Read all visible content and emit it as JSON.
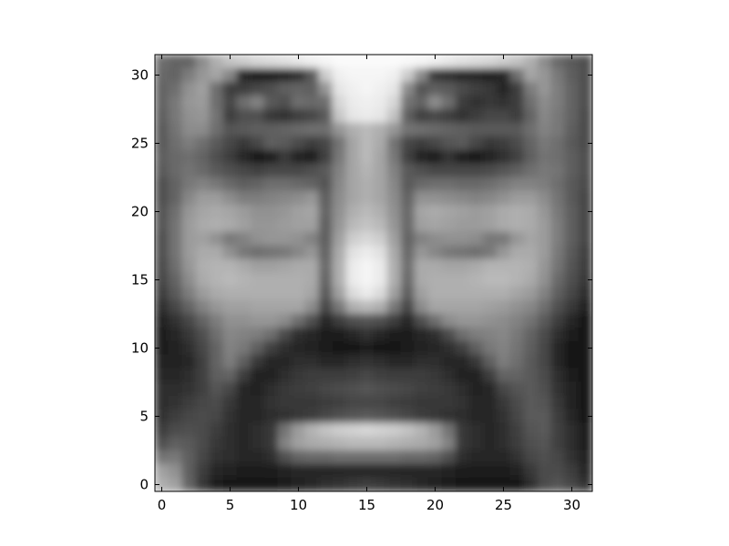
{
  "chart_data": {
    "type": "heatmap",
    "colormap": "gray",
    "interpolation": "smooth",
    "image_size": [
      32,
      32
    ],
    "origin": "upper",
    "xlim": [
      -0.5,
      31.5
    ],
    "ylim": [
      31.5,
      -0.5
    ],
    "x_ticks": [
      0,
      5,
      10,
      15,
      20,
      25,
      30
    ],
    "y_ticks": [
      0,
      5,
      10,
      15,
      20,
      25,
      30
    ],
    "x_tick_labels": [
      "0",
      "5",
      "10",
      "15",
      "20",
      "25",
      "30"
    ],
    "y_tick_labels": [
      "0",
      "5",
      "10",
      "15",
      "20",
      "25",
      "30"
    ],
    "grid": false,
    "title": "",
    "xlabel": "",
    "ylabel": "",
    "pixel_rows": [
      [
        110,
        100,
        100,
        140,
        175,
        195,
        205,
        215,
        220,
        225,
        232,
        240,
        245,
        250,
        250,
        250,
        250,
        250,
        248,
        245,
        240,
        232,
        225,
        220,
        215,
        205,
        195,
        175,
        140,
        105,
        90,
        80
      ],
      [
        105,
        100,
        125,
        150,
        165,
        135,
        40,
        30,
        30,
        35,
        45,
        90,
        205,
        240,
        245,
        245,
        245,
        240,
        205,
        140,
        55,
        45,
        40,
        40,
        35,
        40,
        110,
        165,
        150,
        120,
        95,
        80
      ],
      [
        100,
        110,
        145,
        160,
        110,
        60,
        60,
        70,
        80,
        95,
        100,
        95,
        150,
        230,
        240,
        245,
        240,
        230,
        140,
        85,
        95,
        90,
        75,
        65,
        55,
        40,
        60,
        125,
        150,
        125,
        100,
        80
      ],
      [
        100,
        120,
        150,
        155,
        110,
        70,
        110,
        130,
        90,
        80,
        110,
        105,
        110,
        215,
        235,
        240,
        235,
        215,
        115,
        100,
        140,
        110,
        60,
        50,
        55,
        50,
        60,
        110,
        140,
        125,
        100,
        80
      ],
      [
        95,
        120,
        145,
        150,
        115,
        60,
        80,
        80,
        55,
        50,
        60,
        70,
        90,
        200,
        230,
        235,
        230,
        195,
        95,
        65,
        70,
        60,
        50,
        60,
        70,
        70,
        60,
        100,
        135,
        120,
        100,
        75
      ],
      [
        90,
        115,
        140,
        140,
        110,
        85,
        90,
        95,
        95,
        100,
        105,
        110,
        110,
        150,
        175,
        185,
        175,
        150,
        115,
        110,
        105,
        100,
        95,
        90,
        90,
        90,
        90,
        110,
        130,
        120,
        95,
        75
      ],
      [
        90,
        110,
        125,
        110,
        90,
        70,
        55,
        70,
        95,
        90,
        75,
        60,
        70,
        115,
        165,
        185,
        170,
        115,
        70,
        60,
        70,
        85,
        90,
        70,
        55,
        60,
        75,
        100,
        120,
        110,
        90,
        75
      ],
      [
        95,
        105,
        110,
        100,
        80,
        60,
        40,
        25,
        30,
        55,
        35,
        30,
        65,
        120,
        165,
        185,
        165,
        120,
        65,
        35,
        30,
        50,
        30,
        25,
        35,
        45,
        65,
        95,
        115,
        110,
        95,
        80
      ],
      [
        90,
        105,
        115,
        105,
        90,
        80,
        70,
        65,
        70,
        70,
        70,
        80,
        90,
        130,
        165,
        180,
        165,
        130,
        90,
        80,
        70,
        70,
        70,
        70,
        75,
        85,
        95,
        110,
        120,
        115,
        95,
        80
      ],
      [
        80,
        100,
        120,
        130,
        120,
        105,
        95,
        100,
        110,
        110,
        105,
        100,
        85,
        135,
        165,
        175,
        165,
        135,
        90,
        105,
        110,
        110,
        105,
        105,
        110,
        120,
        130,
        130,
        125,
        110,
        90,
        75
      ],
      [
        80,
        100,
        135,
        155,
        155,
        140,
        125,
        125,
        130,
        135,
        140,
        150,
        95,
        140,
        165,
        175,
        165,
        140,
        100,
        145,
        145,
        140,
        135,
        130,
        135,
        145,
        155,
        155,
        140,
        115,
        90,
        70
      ],
      [
        85,
        110,
        150,
        165,
        170,
        165,
        155,
        145,
        145,
        150,
        160,
        165,
        100,
        145,
        175,
        185,
        175,
        145,
        105,
        165,
        170,
        165,
        160,
        155,
        160,
        170,
        175,
        170,
        150,
        120,
        95,
        70
      ],
      [
        85,
        115,
        155,
        170,
        175,
        170,
        160,
        150,
        150,
        155,
        160,
        160,
        95,
        150,
        185,
        195,
        185,
        150,
        105,
        160,
        165,
        160,
        155,
        155,
        160,
        170,
        175,
        170,
        155,
        125,
        95,
        70
      ],
      [
        80,
        115,
        155,
        160,
        145,
        120,
        130,
        145,
        150,
        150,
        145,
        130,
        95,
        160,
        205,
        215,
        205,
        160,
        100,
        130,
        140,
        145,
        145,
        140,
        120,
        120,
        150,
        165,
        155,
        125,
        95,
        70
      ],
      [
        80,
        115,
        155,
        170,
        170,
        145,
        120,
        110,
        115,
        120,
        135,
        150,
        100,
        170,
        225,
        235,
        225,
        170,
        105,
        150,
        135,
        120,
        115,
        110,
        120,
        150,
        170,
        170,
        155,
        120,
        90,
        65
      ],
      [
        75,
        110,
        150,
        175,
        180,
        180,
        170,
        160,
        160,
        165,
        170,
        170,
        105,
        175,
        235,
        245,
        235,
        175,
        110,
        170,
        170,
        165,
        165,
        170,
        180,
        180,
        180,
        175,
        150,
        115,
        85,
        60
      ],
      [
        70,
        100,
        140,
        170,
        180,
        185,
        180,
        175,
        175,
        175,
        175,
        170,
        100,
        175,
        235,
        245,
        235,
        175,
        105,
        170,
        175,
        175,
        175,
        180,
        185,
        185,
        180,
        170,
        145,
        105,
        80,
        55
      ],
      [
        60,
        90,
        125,
        155,
        170,
        175,
        175,
        175,
        175,
        175,
        175,
        165,
        90,
        160,
        220,
        235,
        220,
        160,
        95,
        160,
        175,
        175,
        175,
        175,
        175,
        175,
        165,
        155,
        130,
        95,
        70,
        45
      ],
      [
        45,
        70,
        100,
        130,
        150,
        160,
        160,
        165,
        165,
        165,
        165,
        140,
        70,
        120,
        175,
        185,
        175,
        120,
        70,
        140,
        165,
        165,
        165,
        165,
        160,
        155,
        145,
        135,
        110,
        80,
        55,
        35
      ],
      [
        35,
        50,
        70,
        100,
        125,
        145,
        145,
        150,
        150,
        140,
        110,
        80,
        40,
        60,
        80,
        85,
        80,
        60,
        40,
        80,
        110,
        140,
        150,
        150,
        145,
        140,
        130,
        115,
        90,
        60,
        40,
        25
      ],
      [
        30,
        40,
        55,
        80,
        110,
        135,
        130,
        125,
        110,
        75,
        45,
        40,
        30,
        30,
        40,
        50,
        40,
        30,
        30,
        40,
        45,
        75,
        110,
        125,
        130,
        135,
        120,
        100,
        75,
        45,
        30,
        20
      ],
      [
        30,
        35,
        45,
        70,
        100,
        130,
        120,
        95,
        65,
        45,
        40,
        35,
        30,
        25,
        25,
        30,
        25,
        25,
        30,
        35,
        40,
        45,
        65,
        95,
        120,
        130,
        115,
        95,
        70,
        40,
        25,
        20
      ],
      [
        35,
        35,
        40,
        65,
        100,
        125,
        95,
        55,
        40,
        40,
        45,
        45,
        40,
        40,
        45,
        50,
        45,
        40,
        40,
        45,
        45,
        40,
        40,
        55,
        95,
        125,
        110,
        90,
        70,
        40,
        25,
        20
      ],
      [
        40,
        40,
        45,
        65,
        95,
        100,
        60,
        35,
        35,
        45,
        55,
        60,
        60,
        60,
        65,
        70,
        65,
        60,
        60,
        60,
        55,
        45,
        35,
        35,
        60,
        100,
        100,
        90,
        75,
        45,
        30,
        20
      ],
      [
        45,
        45,
        50,
        65,
        85,
        70,
        40,
        35,
        45,
        55,
        60,
        65,
        70,
        75,
        80,
        85,
        80,
        75,
        70,
        65,
        60,
        55,
        45,
        35,
        40,
        70,
        85,
        90,
        80,
        50,
        35,
        25
      ],
      [
        45,
        50,
        60,
        70,
        75,
        55,
        40,
        40,
        50,
        55,
        55,
        55,
        60,
        65,
        70,
        70,
        70,
        65,
        60,
        55,
        55,
        55,
        50,
        40,
        40,
        55,
        75,
        90,
        85,
        55,
        35,
        25
      ],
      [
        50,
        60,
        70,
        75,
        70,
        50,
        40,
        40,
        45,
        50,
        55,
        60,
        70,
        80,
        85,
        90,
        85,
        80,
        70,
        60,
        55,
        50,
        45,
        40,
        40,
        50,
        70,
        90,
        90,
        60,
        40,
        25
      ],
      [
        60,
        75,
        80,
        75,
        60,
        45,
        40,
        45,
        55,
        115,
        155,
        180,
        195,
        205,
        210,
        215,
        210,
        205,
        195,
        180,
        155,
        115,
        55,
        45,
        40,
        45,
        65,
        85,
        90,
        65,
        45,
        30
      ],
      [
        80,
        95,
        90,
        75,
        55,
        45,
        40,
        45,
        55,
        130,
        160,
        170,
        175,
        180,
        185,
        185,
        185,
        180,
        175,
        170,
        160,
        130,
        55,
        45,
        40,
        45,
        60,
        80,
        85,
        65,
        45,
        30
      ],
      [
        115,
        120,
        95,
        70,
        50,
        45,
        40,
        40,
        45,
        80,
        100,
        105,
        105,
        110,
        110,
        110,
        110,
        110,
        105,
        105,
        100,
        80,
        45,
        40,
        40,
        40,
        50,
        70,
        80,
        70,
        50,
        35
      ],
      [
        160,
        145,
        95,
        60,
        40,
        35,
        30,
        30,
        30,
        35,
        40,
        40,
        40,
        40,
        40,
        40,
        40,
        40,
        40,
        40,
        40,
        35,
        30,
        30,
        30,
        30,
        35,
        55,
        75,
        75,
        60,
        40
      ],
      [
        175,
        160,
        100,
        55,
        30,
        25,
        20,
        20,
        25,
        30,
        35,
        40,
        45,
        50,
        55,
        60,
        55,
        50,
        45,
        40,
        35,
        30,
        25,
        20,
        20,
        20,
        25,
        45,
        75,
        85,
        70,
        50
      ]
    ]
  }
}
